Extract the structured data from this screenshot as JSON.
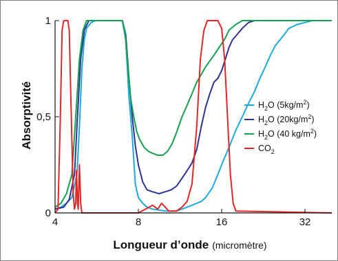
{
  "chart_data": {
    "type": "line",
    "title": "",
    "xlabel": "Longueur d’onde",
    "xlabel_unit": "(micromètre)",
    "ylabel": "Absorptivité",
    "x_scale": "log2",
    "xlim": [
      4,
      40
    ],
    "ylim": [
      0,
      1
    ],
    "x_ticks": [
      {
        "value": 4,
        "label": "4"
      },
      {
        "value": 8,
        "label": "8"
      },
      {
        "value": 16,
        "label": "16"
      },
      {
        "value": 32,
        "label": "32"
      }
    ],
    "y_ticks": [
      {
        "value": 0,
        "label": "0"
      },
      {
        "value": 0.5,
        "label": "0,5"
      },
      {
        "value": 1,
        "label": "1"
      }
    ],
    "legend_position": "right",
    "series": [
      {
        "name": "H2O (5kg/m2)",
        "legend": {
          "base": "H",
          "sub1": "2",
          "mid": "O (5kg/m",
          "sup": "2",
          "end": ")"
        },
        "color": "#1aa9df",
        "points": [
          [
            4.0,
            0.02
          ],
          [
            4.2,
            0.03
          ],
          [
            4.4,
            0.05
          ],
          [
            4.6,
            0.08
          ],
          [
            4.8,
            0.2
          ],
          [
            4.9,
            0.45
          ],
          [
            5.0,
            0.75
          ],
          [
            5.1,
            0.9
          ],
          [
            5.2,
            0.96
          ],
          [
            5.4,
            0.99
          ],
          [
            5.6,
            1.0
          ],
          [
            6.5,
            1.0
          ],
          [
            7.0,
            1.0
          ],
          [
            7.2,
            0.9
          ],
          [
            7.4,
            0.6
          ],
          [
            7.6,
            0.4
          ],
          [
            7.8,
            0.15
          ],
          [
            8.0,
            0.08
          ],
          [
            8.3,
            0.05
          ],
          [
            8.6,
            0.03
          ],
          [
            9.0,
            0.02
          ],
          [
            10.0,
            0.01
          ],
          [
            11.0,
            0.01
          ],
          [
            11.5,
            0.02
          ],
          [
            12.0,
            0.03
          ],
          [
            12.5,
            0.04
          ],
          [
            13.0,
            0.05
          ],
          [
            13.5,
            0.06
          ],
          [
            14.0,
            0.08
          ],
          [
            14.8,
            0.13
          ],
          [
            15.5,
            0.2
          ],
          [
            16.2,
            0.27
          ],
          [
            17.0,
            0.34
          ],
          [
            18.0,
            0.43
          ],
          [
            19.0,
            0.5
          ],
          [
            20.0,
            0.57
          ],
          [
            21.0,
            0.63
          ],
          [
            22.0,
            0.7
          ],
          [
            23.0,
            0.76
          ],
          [
            24.0,
            0.82
          ],
          [
            25.0,
            0.87
          ],
          [
            26.0,
            0.9
          ],
          [
            27.0,
            0.93
          ],
          [
            28.0,
            0.96
          ],
          [
            30.0,
            0.98
          ],
          [
            32.0,
            0.99
          ],
          [
            34.0,
            1.0
          ],
          [
            40.0,
            1.0
          ]
        ]
      },
      {
        "name": "H2O (20kg/m2)",
        "legend": {
          "base": "H",
          "sub1": "2",
          "mid": "O (20kg/m",
          "sup": "2",
          "end": ")"
        },
        "color": "#2e3192",
        "points": [
          [
            4.0,
            0.02
          ],
          [
            4.3,
            0.03
          ],
          [
            4.5,
            0.07
          ],
          [
            4.7,
            0.2
          ],
          [
            4.8,
            0.45
          ],
          [
            4.95,
            0.8
          ],
          [
            5.1,
            0.95
          ],
          [
            5.3,
            1.0
          ],
          [
            6.5,
            1.0
          ],
          [
            7.0,
            1.0
          ],
          [
            7.2,
            0.93
          ],
          [
            7.4,
            0.7
          ],
          [
            7.6,
            0.5
          ],
          [
            7.8,
            0.35
          ],
          [
            8.0,
            0.25
          ],
          [
            8.3,
            0.16
          ],
          [
            8.6,
            0.12
          ],
          [
            9.0,
            0.11
          ],
          [
            9.5,
            0.1
          ],
          [
            10.0,
            0.11
          ],
          [
            10.5,
            0.12
          ],
          [
            11.0,
            0.14
          ],
          [
            11.5,
            0.18
          ],
          [
            12.0,
            0.22
          ],
          [
            12.5,
            0.26
          ],
          [
            13.0,
            0.33
          ],
          [
            13.5,
            0.45
          ],
          [
            14.0,
            0.55
          ],
          [
            14.5,
            0.62
          ],
          [
            15.0,
            0.68
          ],
          [
            15.5,
            0.7
          ],
          [
            16.0,
            0.74
          ],
          [
            16.5,
            0.8
          ],
          [
            17.0,
            0.86
          ],
          [
            17.5,
            0.9
          ],
          [
            18.0,
            0.92
          ],
          [
            19.0,
            0.96
          ],
          [
            20.0,
            0.99
          ],
          [
            21.0,
            1.0
          ],
          [
            40.0,
            1.0
          ]
        ]
      },
      {
        "name": "H2O (40 kg/m2)",
        "legend": {
          "base": "H",
          "sub1": "2",
          "mid": "O (40 kg/m",
          "sup": "2",
          "end": ")"
        },
        "color": "#14a14f",
        "points": [
          [
            4.0,
            0.03
          ],
          [
            4.2,
            0.05
          ],
          [
            4.4,
            0.1
          ],
          [
            4.6,
            0.2
          ],
          [
            4.75,
            0.5
          ],
          [
            4.9,
            0.8
          ],
          [
            5.05,
            0.95
          ],
          [
            5.2,
            1.0
          ],
          [
            6.5,
            1.0
          ],
          [
            7.0,
            1.0
          ],
          [
            7.15,
            0.95
          ],
          [
            7.3,
            0.8
          ],
          [
            7.5,
            0.6
          ],
          [
            7.7,
            0.5
          ],
          [
            7.9,
            0.42
          ],
          [
            8.1,
            0.38
          ],
          [
            8.4,
            0.34
          ],
          [
            8.7,
            0.32
          ],
          [
            9.0,
            0.31
          ],
          [
            9.4,
            0.3
          ],
          [
            9.8,
            0.3
          ],
          [
            10.2,
            0.32
          ],
          [
            10.6,
            0.36
          ],
          [
            11.0,
            0.42
          ],
          [
            11.5,
            0.5
          ],
          [
            12.0,
            0.56
          ],
          [
            12.5,
            0.62
          ],
          [
            13.0,
            0.68
          ],
          [
            13.5,
            0.72
          ],
          [
            14.0,
            0.76
          ],
          [
            15.0,
            0.82
          ],
          [
            16.0,
            0.88
          ],
          [
            16.5,
            0.91
          ],
          [
            17.0,
            0.95
          ],
          [
            18.0,
            0.98
          ],
          [
            19.0,
            1.0
          ],
          [
            40.0,
            1.0
          ]
        ]
      },
      {
        "name": "CO2",
        "legend": {
          "base": "CO",
          "sub1": "2",
          "mid": "",
          "sup": "",
          "end": ""
        },
        "color": "#e32526",
        "points": [
          [
            4.0,
            0.0
          ],
          [
            4.1,
            0.02
          ],
          [
            4.18,
            0.5
          ],
          [
            4.24,
            0.95
          ],
          [
            4.3,
            1.0
          ],
          [
            4.45,
            1.0
          ],
          [
            4.5,
            0.95
          ],
          [
            4.58,
            0.5
          ],
          [
            4.65,
            0.1
          ],
          [
            4.7,
            0.02
          ],
          [
            4.75,
            0.05
          ],
          [
            4.78,
            0.22
          ],
          [
            4.82,
            0.05
          ],
          [
            4.85,
            0.02
          ],
          [
            4.9,
            0.25
          ],
          [
            4.95,
            0.05
          ],
          [
            5.0,
            0.0
          ],
          [
            8.0,
            0.0
          ],
          [
            8.5,
            0.02
          ],
          [
            9.0,
            0.04
          ],
          [
            9.4,
            0.02
          ],
          [
            9.7,
            0.05
          ],
          [
            10.0,
            0.03
          ],
          [
            10.3,
            0.01
          ],
          [
            11.0,
            0.01
          ],
          [
            11.5,
            0.03
          ],
          [
            12.0,
            0.06
          ],
          [
            12.5,
            0.15
          ],
          [
            13.0,
            0.45
          ],
          [
            13.4,
            0.8
          ],
          [
            13.8,
            0.95
          ],
          [
            14.2,
            1.0
          ],
          [
            15.5,
            1.0
          ],
          [
            16.0,
            0.96
          ],
          [
            16.4,
            0.8
          ],
          [
            16.8,
            0.5
          ],
          [
            17.2,
            0.2
          ],
          [
            17.6,
            0.05
          ],
          [
            18.0,
            0.01
          ],
          [
            40.0,
            0.0
          ]
        ]
      }
    ]
  }
}
